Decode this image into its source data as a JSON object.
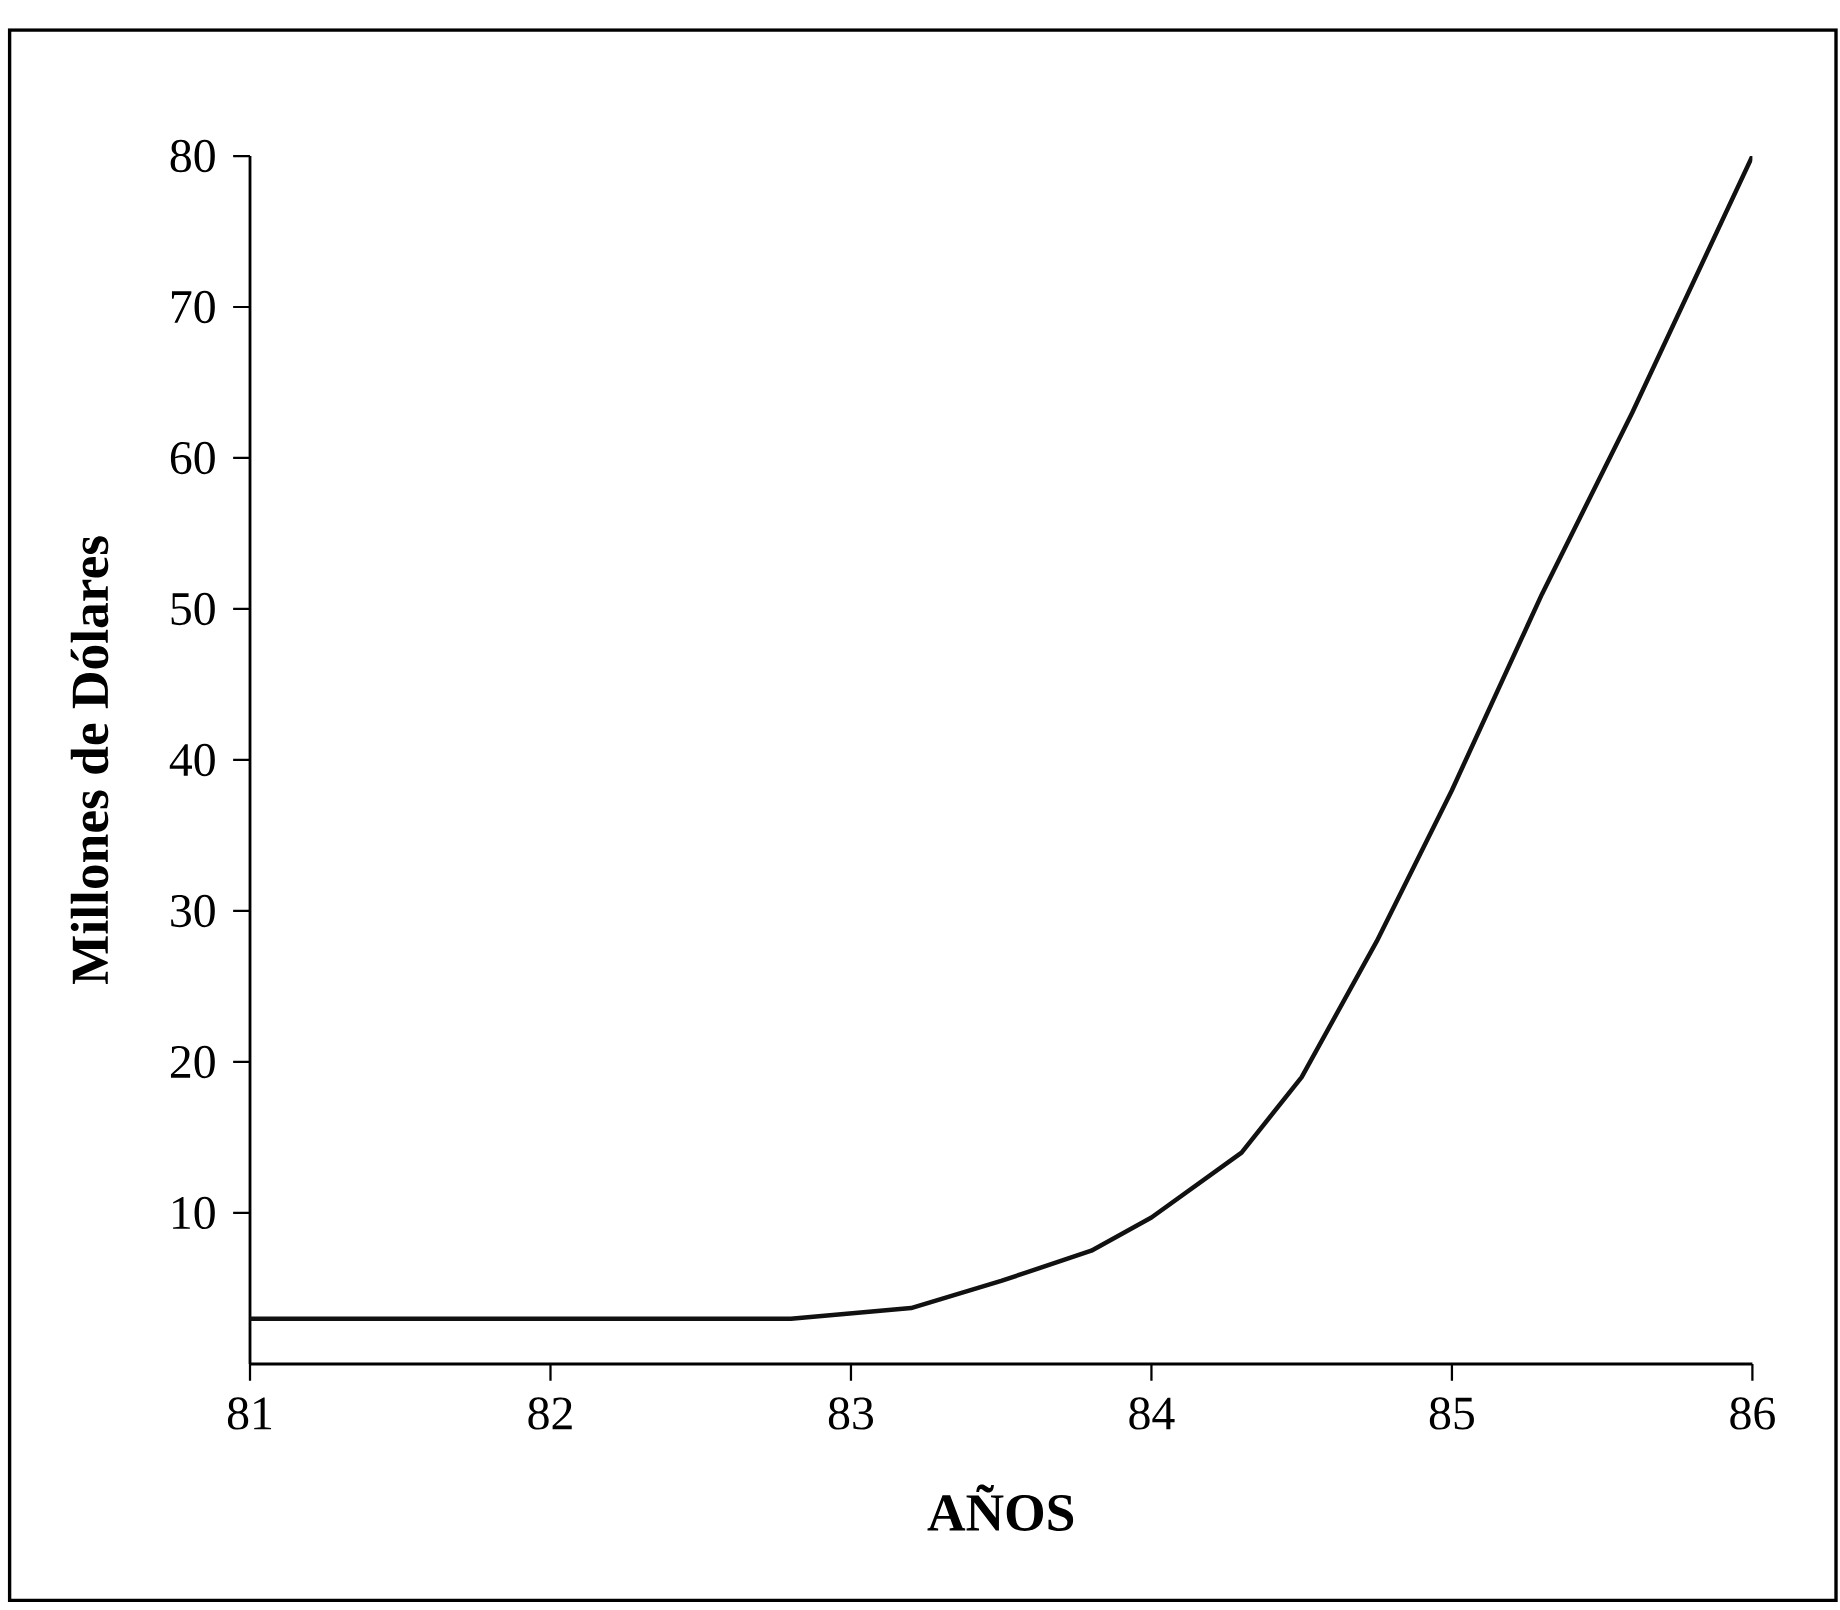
{
  "chart_data": {
    "type": "line",
    "xlabel": "AÑOS",
    "ylabel": "Millones de Dólares",
    "x": [
      81,
      82,
      82.8,
      83.2,
      83.5,
      83.8,
      84,
      84.3,
      84.5,
      84.75,
      85,
      85.3,
      85.6,
      86
    ],
    "values": [
      3,
      3,
      3,
      3.7,
      5.5,
      7.5,
      9.7,
      14,
      19,
      28,
      38,
      51,
      63,
      80
    ],
    "color": "#111111",
    "marker": "none",
    "line_style": "solid",
    "grid": false,
    "xlim": [
      81,
      86
    ],
    "xticks": [
      81,
      82,
      83,
      84,
      85,
      86
    ],
    "ylim": [
      0,
      80
    ],
    "yticks": [
      10,
      20,
      30,
      40,
      50,
      60,
      70,
      80
    ]
  }
}
